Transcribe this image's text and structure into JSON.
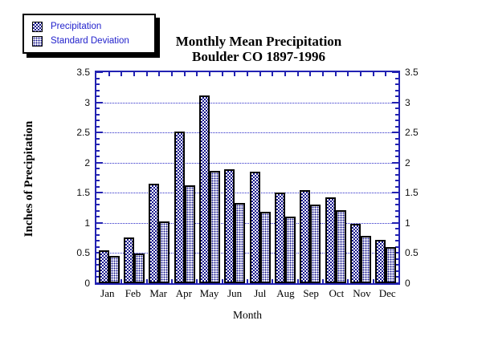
{
  "window": {
    "background": "#ffffff"
  },
  "title": {
    "line1": "Monthly Mean Precipitation",
    "line2": "Boulder CO 1897-1996"
  },
  "axes": {
    "ylabel": "Inches of Precipitation",
    "xlabel": "Month",
    "yticklabels": [
      "0",
      "0.5",
      "1",
      "1.5",
      "2",
      "2.5",
      "3",
      "3.5"
    ]
  },
  "colors": {
    "bar_pattern_navy": "#15158c",
    "axis_frame_blue": "#2222b2",
    "gridline_blue": "#2a2ac8",
    "legend_text_blue": "#2222cc",
    "title_text": "#000000"
  },
  "legend": {
    "swatches": [
      "checker-pattern",
      "dot-pattern"
    ]
  },
  "chart_data": {
    "type": "bar",
    "title": "Monthly Mean Precipitation Boulder CO 1897-1996",
    "categories": [
      "Jan",
      "Feb",
      "Mar",
      "Apr",
      "May",
      "Jun",
      "Jul",
      "Aug",
      "Sep",
      "Oct",
      "Nov",
      "Dec"
    ],
    "series": [
      {
        "name": "Precipitation",
        "values": [
          0.55,
          0.76,
          1.65,
          2.51,
          3.11,
          1.89,
          1.85,
          1.51,
          1.54,
          1.42,
          0.99,
          0.72
        ]
      },
      {
        "name": "Standard Deviation",
        "values": [
          0.45,
          0.49,
          1.02,
          1.63,
          1.86,
          1.33,
          1.18,
          1.1,
          1.31,
          1.21,
          0.78,
          0.6
        ]
      }
    ],
    "xlabel": "Month",
    "ylabel": "Inches of Precipitation",
    "ylim": [
      0,
      3.5
    ],
    "ytick_major": 0.5,
    "ytick_minor": 0.1,
    "grid": "horizontal dotted lines at each 0.5 major tick",
    "legend_position": "top-left outside plot",
    "bar_styles": [
      "navy-checkerboard-hatch",
      "navy-dot-hatch"
    ]
  }
}
